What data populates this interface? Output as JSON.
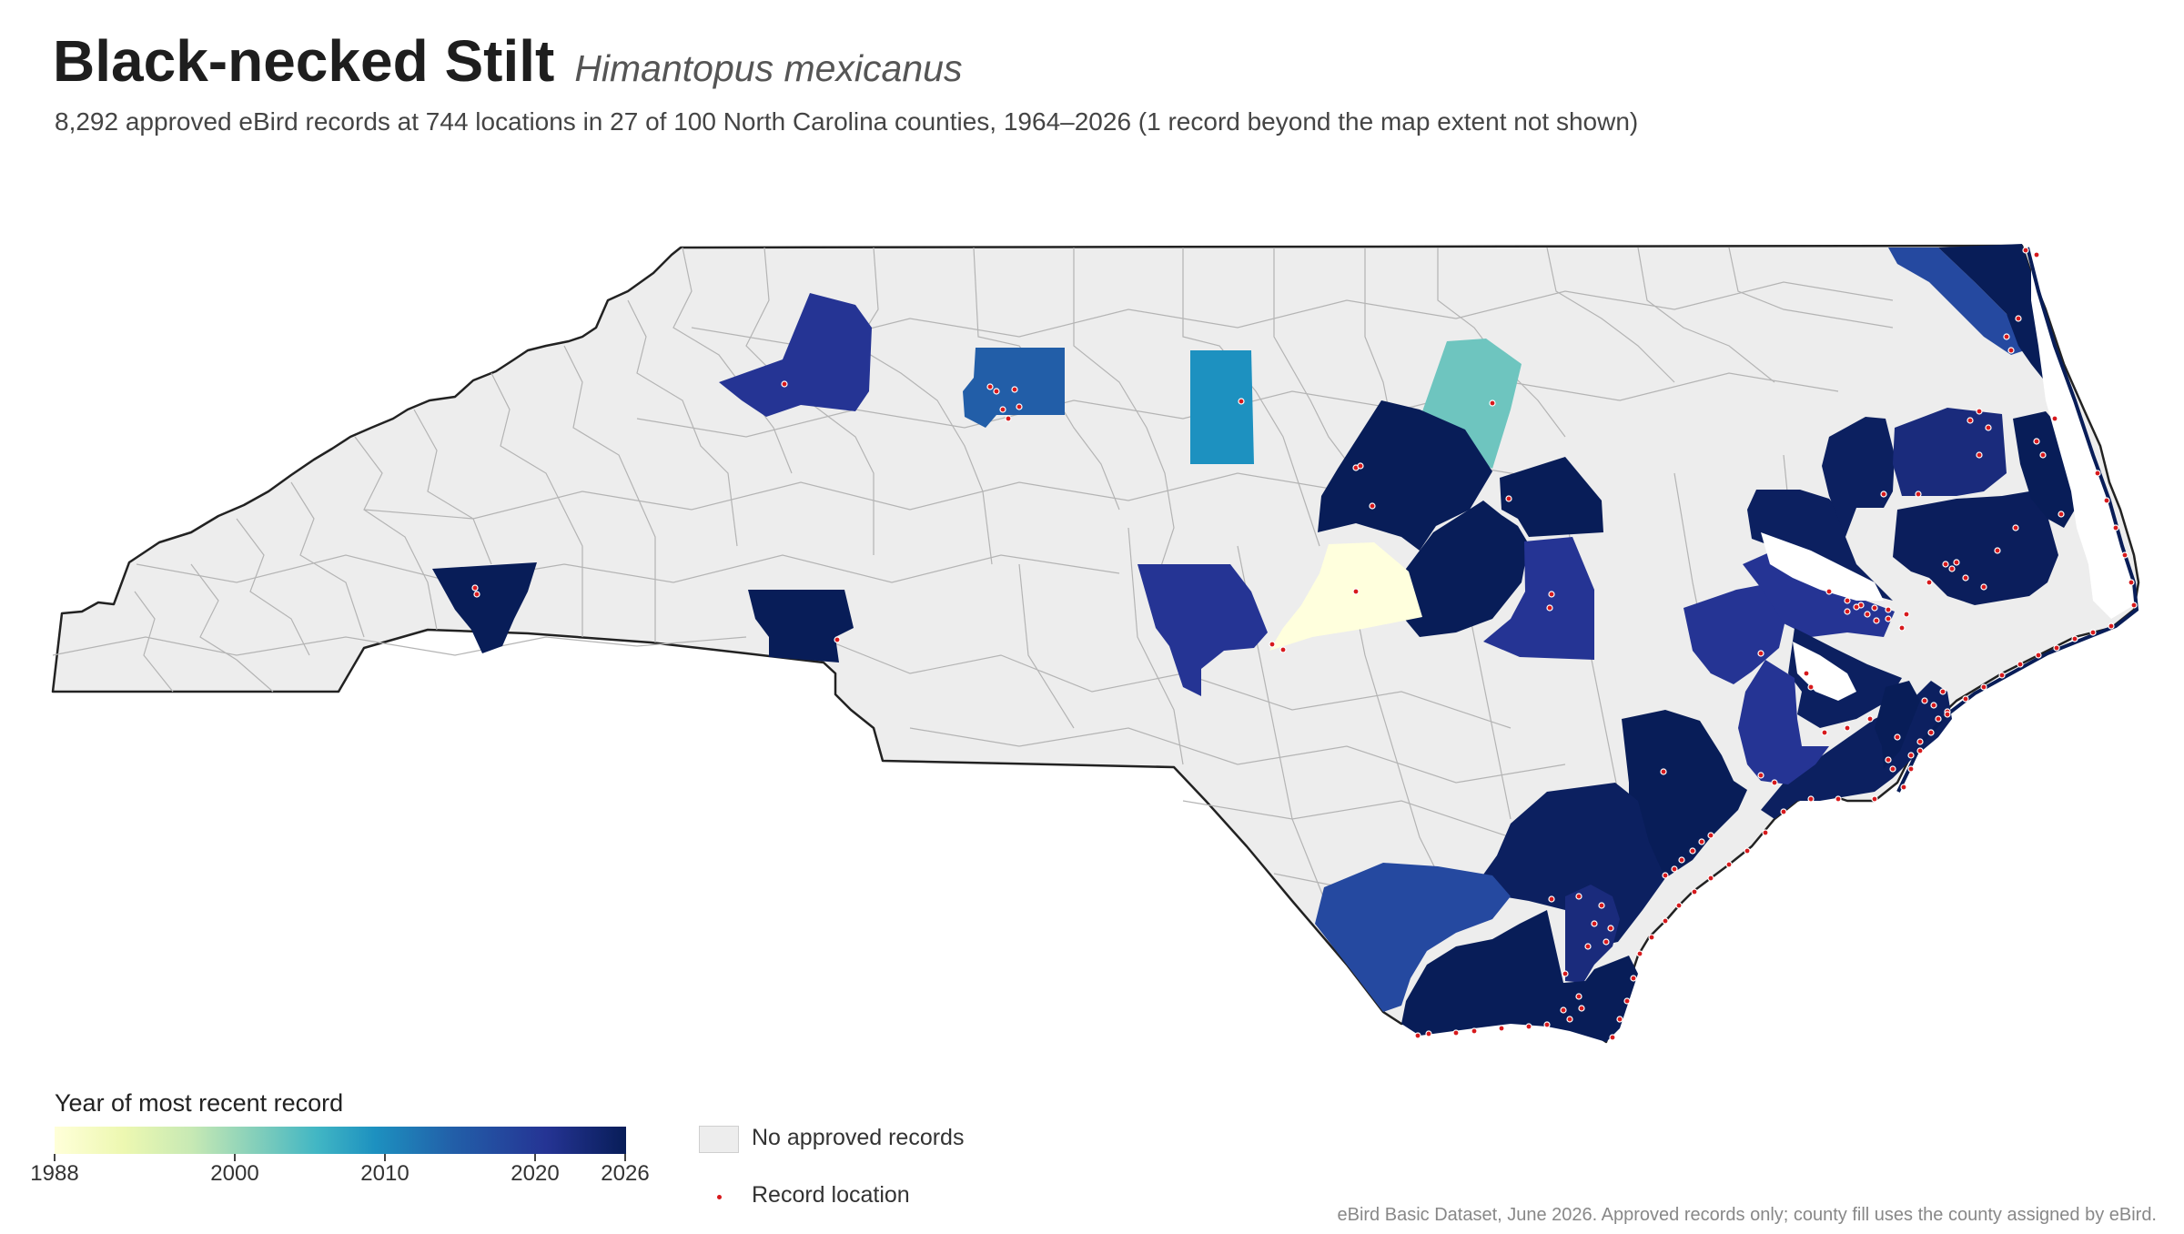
{
  "title": "Black-necked Stilt",
  "species": "Himantopus mexicanus",
  "subtitle": "8,292 approved eBird records at 744 locations in 27 of 100 North Carolina counties, 1964–2026 (1 record beyond the map extent not shown)",
  "legend": {
    "title": "Year of most recent record",
    "ticks": [
      "1988",
      "2000",
      "2010",
      "2020",
      "2026"
    ],
    "no_records_label": "No approved records",
    "record_label": "Record location"
  },
  "source": "eBird Basic Dataset, June 2026. Approved records only; county fill uses the county assigned by eBird.",
  "colors": {
    "no_records": "#ededed",
    "record_point": "#d7191c",
    "county_border": "#b4b4b4",
    "state_outline": "#222222",
    "scale": [
      "#ffffd9",
      "#edf8b1",
      "#c7e9b4",
      "#7fcdbb",
      "#41b6c4",
      "#1d91c0",
      "#225ea8",
      "#253494",
      "#081d58"
    ]
  },
  "chart_data": {
    "type": "choropleth",
    "region": "North Carolina",
    "counties_with_records": 27,
    "counties_total": 100,
    "color_scale_range": [
      1988,
      2026
    ]
  }
}
